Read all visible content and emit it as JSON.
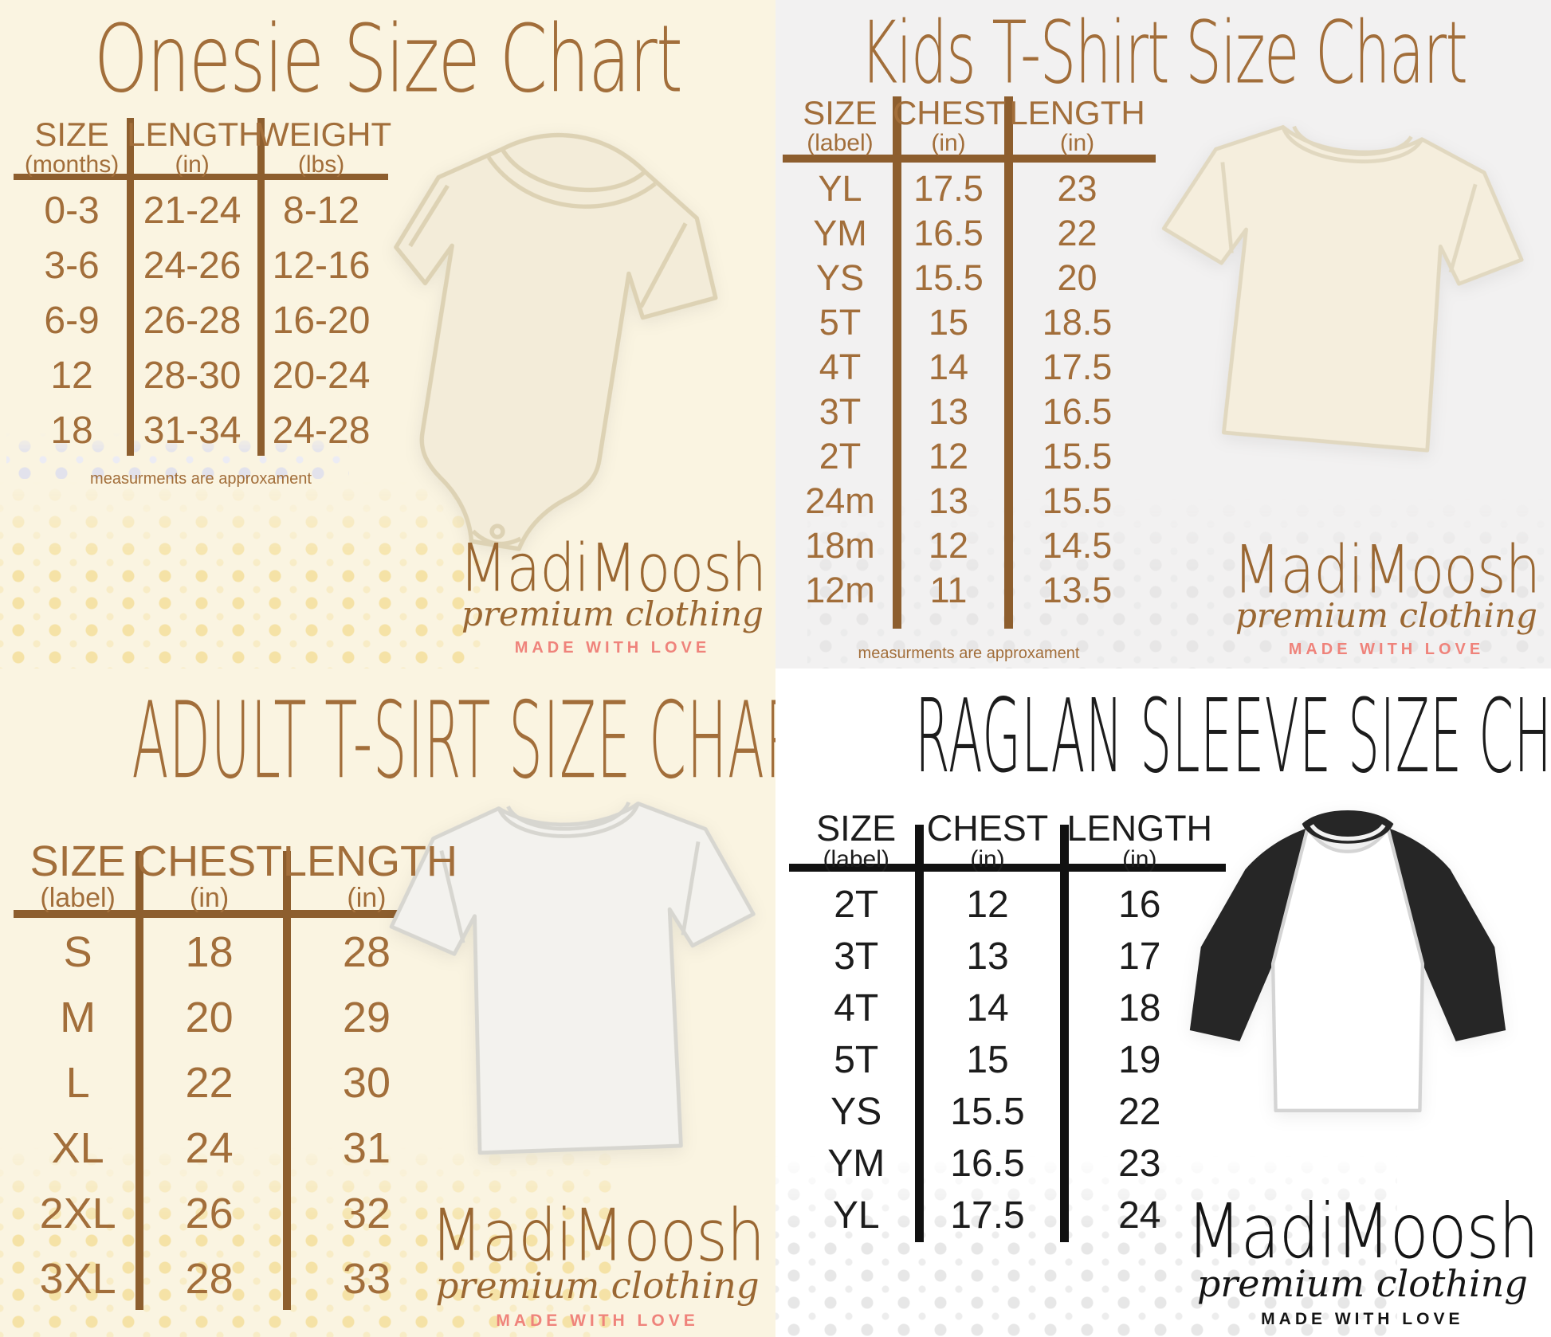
{
  "brand": {
    "name": "MadiMoosh",
    "tagline": "premium clothing",
    "motto": "MADE WITH LOVE"
  },
  "colors": {
    "brown_text": "#a26e3a",
    "brown_line": "#8d5e2e",
    "salmon_motto": "#ef837b",
    "black_text": "#1c1c1c",
    "cream_background": "#faf4e1",
    "gray_background": "#f2f1f1",
    "white_background": "#ffffff",
    "yellow_dots": "#f5e2a6",
    "gray_dots": "#e7e6e6"
  },
  "chart_data": [
    {
      "id": "onesie",
      "type": "table",
      "title": "Onesie Size Chart",
      "columns": [
        {
          "label": "SIZE",
          "unit": "(months)"
        },
        {
          "label": "LENGTH",
          "unit": "(in)"
        },
        {
          "label": "WEIGHT",
          "unit": "(lbs)"
        }
      ],
      "rows": [
        [
          "0-3",
          "21-24",
          "8-12"
        ],
        [
          "3-6",
          "24-26",
          "12-16"
        ],
        [
          "6-9",
          "26-28",
          "16-20"
        ],
        [
          "12",
          "28-30",
          "20-24"
        ],
        [
          "18",
          "31-34",
          "24-28"
        ]
      ],
      "note": "measurments are approxament"
    },
    {
      "id": "kids-tshirt",
      "type": "table",
      "title": "Kids T-Shirt Size Chart",
      "columns": [
        {
          "label": "SIZE",
          "unit": "(label)"
        },
        {
          "label": "CHEST",
          "unit": "(in)"
        },
        {
          "label": "LENGTH",
          "unit": "(in)"
        }
      ],
      "rows": [
        [
          "YL",
          "17.5",
          "23"
        ],
        [
          "YM",
          "16.5",
          "22"
        ],
        [
          "YS",
          "15.5",
          "20"
        ],
        [
          "5T",
          "15",
          "18.5"
        ],
        [
          "4T",
          "14",
          "17.5"
        ],
        [
          "3T",
          "13",
          "16.5"
        ],
        [
          "2T",
          "12",
          "15.5"
        ],
        [
          "24m",
          "13",
          "15.5"
        ],
        [
          "18m",
          "12",
          "14.5"
        ],
        [
          "12m",
          "11",
          "13.5"
        ]
      ],
      "note": "measurments are approxament"
    },
    {
      "id": "adult-tshirt",
      "type": "table",
      "title": "ADULT T-SIRT SIZE CHART",
      "columns": [
        {
          "label": "SIZE",
          "unit": "(label)"
        },
        {
          "label": "CHEST",
          "unit": "(in)"
        },
        {
          "label": "LENGTH",
          "unit": "(in)"
        }
      ],
      "rows": [
        [
          "S",
          "18",
          "28"
        ],
        [
          "M",
          "20",
          "29"
        ],
        [
          "L",
          "22",
          "30"
        ],
        [
          "XL",
          "24",
          "31"
        ],
        [
          "2XL",
          "26",
          "32"
        ],
        [
          "3XL",
          "28",
          "33"
        ]
      ]
    },
    {
      "id": "raglan-sleeve",
      "type": "table",
      "title": "RAGLAN SLEEVE SIZE CHART",
      "columns": [
        {
          "label": "SIZE",
          "unit": "(label)"
        },
        {
          "label": "CHEST",
          "unit": "(in)"
        },
        {
          "label": "LENGTH",
          "unit": "(in)"
        }
      ],
      "rows": [
        [
          "2T",
          "12",
          "16"
        ],
        [
          "3T",
          "13",
          "17"
        ],
        [
          "4T",
          "14",
          "18"
        ],
        [
          "5T",
          "15",
          "19"
        ],
        [
          "YS",
          "15.5",
          "22"
        ],
        [
          "YM",
          "16.5",
          "23"
        ],
        [
          "YL",
          "17.5",
          "24"
        ]
      ]
    }
  ]
}
